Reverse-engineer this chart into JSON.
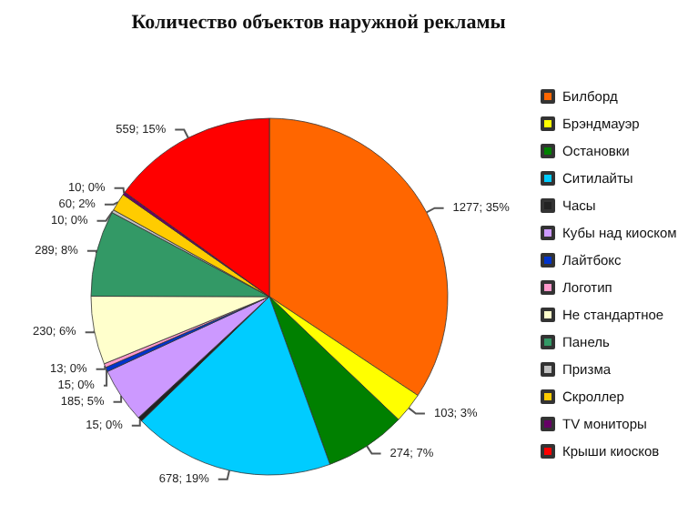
{
  "chart_data": {
    "type": "pie",
    "title": "Количество объектов наружной рекламы",
    "categories": [
      "Билборд",
      "Брэндмауэр",
      "Остановки",
      "Ситилайты",
      "Часы",
      "Кубы над киоском",
      "Лайтбокс",
      "Логотип",
      "Не стандартное",
      "Панель",
      "Призма",
      "Скроллер",
      "TV мониторы",
      "Крыши киосков"
    ],
    "values": [
      1277,
      103,
      274,
      678,
      15,
      185,
      15,
      13,
      230,
      289,
      10,
      60,
      10,
      559
    ],
    "value_labels": [
      "1277; 35%",
      "103; 3%",
      "274; 7%",
      "678; 19%",
      "15; 0%",
      "185; 5%",
      "15; 0%",
      "13; 0%",
      "230; 6%",
      "289; 8%",
      "10; 0%",
      "60; 2%",
      "10; 0%",
      "559; 15%"
    ],
    "colors": [
      "#ff6600",
      "#ffff00",
      "#008000",
      "#00ccff",
      "#222222",
      "#cc99ff",
      "#0033cc",
      "#ff99cc",
      "#ffffcc",
      "#339966",
      "#c0c0c0",
      "#ffcc00",
      "#660066",
      "#ff0000"
    ],
    "legend": "right"
  }
}
